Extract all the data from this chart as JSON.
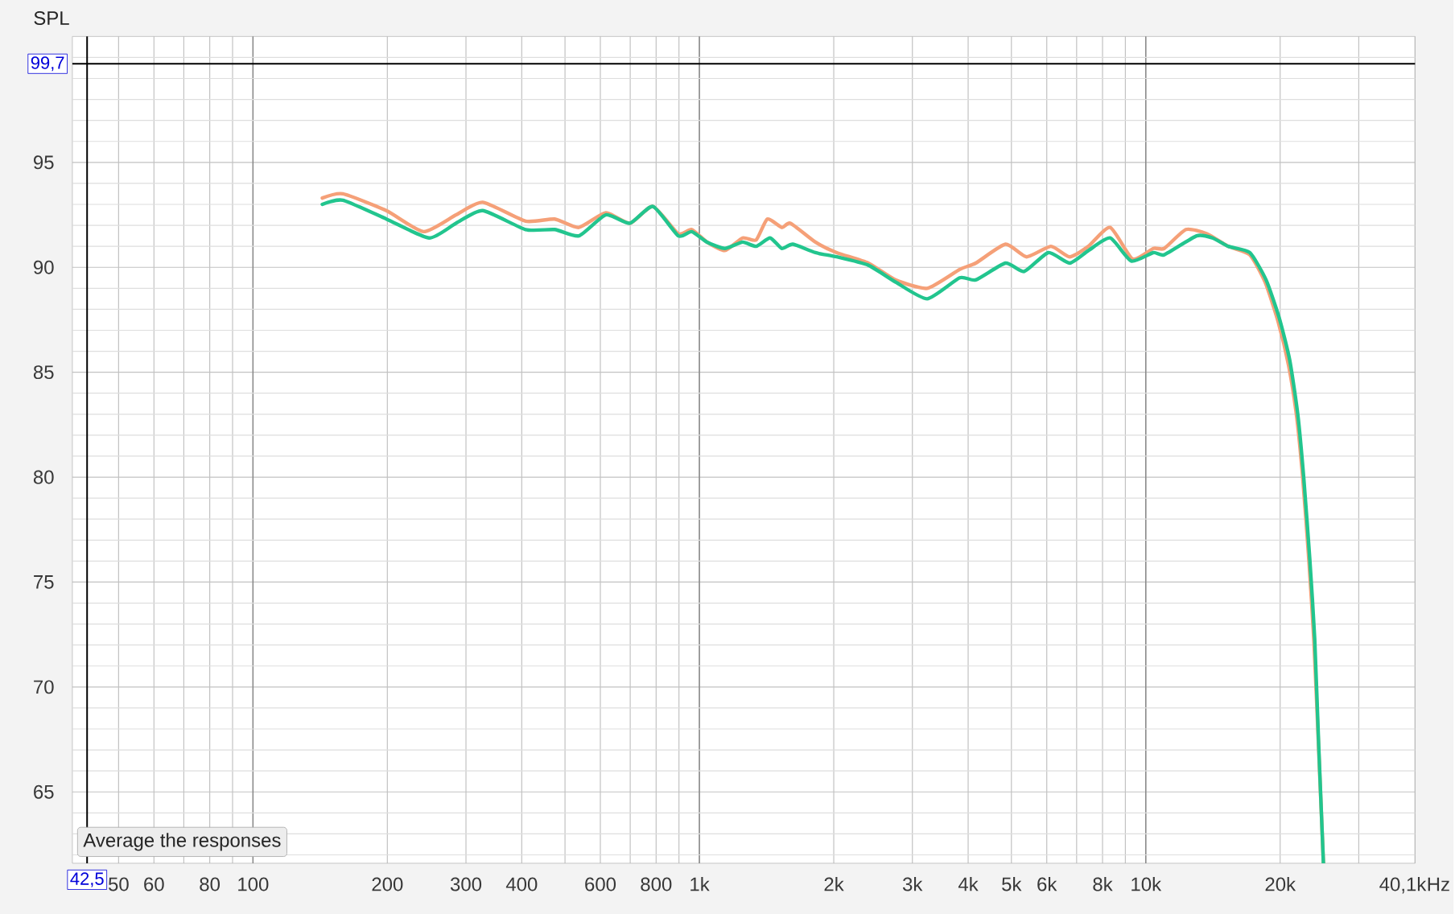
{
  "chart_data": {
    "type": "line",
    "ylabel": "SPL",
    "xlabel": "Hz",
    "log": "x",
    "grid": true,
    "xlim": [
      39.4,
      40100
    ],
    "ylim": [
      61.6,
      101
    ],
    "xticks": [
      50,
      60,
      {
        "value": 70,
        "label": null
      },
      80,
      {
        "value": 90,
        "label": null
      },
      100,
      200,
      300,
      400,
      {
        "value": 500,
        "label": null
      },
      600,
      {
        "value": 700,
        "label": null
      },
      800,
      {
        "value": 900,
        "label": null
      },
      {
        "value": 1000,
        "label": "1k"
      },
      {
        "value": 2000,
        "label": "2k"
      },
      {
        "value": 3000,
        "label": "3k"
      },
      {
        "value": 4000,
        "label": "4k"
      },
      {
        "value": 5000,
        "label": "5k"
      },
      {
        "value": 6000,
        "label": "6k"
      },
      {
        "value": 7000,
        "label": null
      },
      {
        "value": 8000,
        "label": "8k"
      },
      {
        "value": 9000,
        "label": null
      },
      {
        "value": 10000,
        "label": "10k"
      },
      {
        "value": 20000,
        "label": "20k"
      },
      {
        "value": 30000,
        "label": null
      },
      {
        "value": 40100,
        "label": "40,1k"
      }
    ],
    "yticks": [
      {
        "value": 62,
        "label": null
      },
      {
        "value": 63,
        "label": null
      },
      {
        "value": 64,
        "label": null
      },
      65,
      {
        "value": 66,
        "label": null
      },
      {
        "value": 67,
        "label": null
      },
      {
        "value": 68,
        "label": null
      },
      {
        "value": 69,
        "label": null
      },
      70,
      {
        "value": 71,
        "label": null
      },
      {
        "value": 72,
        "label": null
      },
      {
        "value": 73,
        "label": null
      },
      {
        "value": 74,
        "label": null
      },
      75,
      {
        "value": 76,
        "label": null
      },
      {
        "value": 77,
        "label": null
      },
      {
        "value": 78,
        "label": null
      },
      {
        "value": 79,
        "label": null
      },
      80,
      {
        "value": 81,
        "label": null
      },
      {
        "value": 82,
        "label": null
      },
      {
        "value": 83,
        "label": null
      },
      {
        "value": 84,
        "label": null
      },
      85,
      {
        "value": 86,
        "label": null
      },
      {
        "value": 87,
        "label": null
      },
      {
        "value": 88,
        "label": null
      },
      {
        "value": 89,
        "label": null
      },
      90,
      {
        "value": 91,
        "label": null
      },
      {
        "value": 92,
        "label": null
      },
      {
        "value": 93,
        "label": null
      },
      {
        "value": 94,
        "label": null
      },
      95,
      {
        "value": 96,
        "label": null
      },
      {
        "value": 97,
        "label": null
      },
      {
        "value": 98,
        "label": null
      },
      {
        "value": 99,
        "label": null
      },
      {
        "value": 100,
        "label": null
      }
    ],
    "series": [
      {
        "color": "#f5a078",
        "x": [
          143,
          159,
          199,
          241,
          285,
          327,
          408,
          474,
          537,
          617,
          699,
          787,
          897,
          961,
          1040,
          1140,
          1250,
          1340,
          1420,
          1530,
          1600,
          1820,
          2030,
          2390,
          2750,
          3240,
          3830,
          4160,
          4850,
          5410,
          6130,
          6750,
          7440,
          8320,
          9340,
          10400,
          11000,
          12300,
          13700,
          15300,
          17100,
          18500,
          19800,
          20900,
          21800,
          22500,
          23200,
          23800,
          24400,
          25000
        ],
        "values": [
          93.3,
          93.5,
          92.7,
          91.7,
          92.5,
          93.1,
          92.2,
          92.3,
          91.9,
          92.6,
          92.1,
          92.9,
          91.6,
          91.8,
          91.2,
          90.8,
          91.4,
          91.3,
          92.3,
          91.9,
          92.1,
          91.2,
          90.7,
          90.2,
          89.4,
          89.0,
          89.9,
          90.2,
          91.1,
          90.5,
          91.0,
          90.5,
          91.0,
          91.9,
          90.4,
          90.9,
          90.9,
          91.8,
          91.6,
          91.0,
          90.6,
          89.3,
          87.4,
          85.3,
          82.8,
          79.8,
          76.0,
          72.2,
          67.0,
          61.6
        ]
      },
      {
        "color": "#22c58e",
        "x": [
          143,
          159,
          199,
          248,
          285,
          327,
          408,
          474,
          537,
          617,
          699,
          787,
          897,
          961,
          1040,
          1140,
          1250,
          1340,
          1440,
          1530,
          1620,
          1820,
          2030,
          2390,
          2750,
          3240,
          3830,
          4160,
          4850,
          5340,
          6050,
          6750,
          7440,
          8320,
          9280,
          10400,
          11000,
          13000,
          14100,
          15300,
          17100,
          18600,
          19900,
          21000,
          21900,
          22600,
          23300,
          23900,
          24400,
          25000
        ],
        "values": [
          93.0,
          93.2,
          92.3,
          91.4,
          92.1,
          92.7,
          91.8,
          91.8,
          91.5,
          92.5,
          92.1,
          92.9,
          91.5,
          91.7,
          91.2,
          90.9,
          91.2,
          91.0,
          91.4,
          90.9,
          91.1,
          90.7,
          90.5,
          90.1,
          89.3,
          88.5,
          89.5,
          89.4,
          90.2,
          89.8,
          90.7,
          90.2,
          90.8,
          91.4,
          90.3,
          90.7,
          90.6,
          91.5,
          91.4,
          91.0,
          90.7,
          89.4,
          87.6,
          85.6,
          83.0,
          79.9,
          76.1,
          72.3,
          67.2,
          61.6
        ]
      }
    ],
    "ref_lines": [
      {
        "axis": "y",
        "value": 99.7,
        "label": "99,7",
        "color": "#000000"
      },
      {
        "axis": "x",
        "value": 42.5,
        "label": "42,5",
        "color": "#000000"
      }
    ],
    "annotations": [
      "Average the responses"
    ]
  }
}
